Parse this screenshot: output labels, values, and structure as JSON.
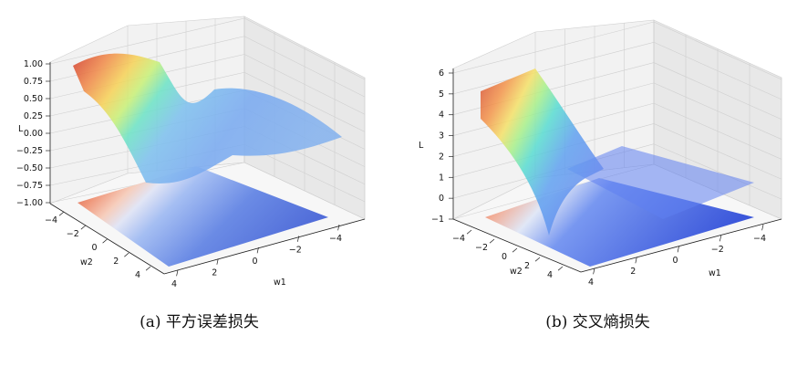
{
  "chart_data": [
    {
      "type": "surface3d",
      "caption": "(a) 平方误差损失",
      "zlabel": "L",
      "xlabel": "w1",
      "ylabel": "w2",
      "zlim": [
        -1.0,
        1.0
      ],
      "xlim": [
        -5,
        5
      ],
      "ylim": [
        -5,
        5
      ],
      "z_ticks": [
        "1.00",
        "0.75",
        "0.50",
        "0.25",
        "0.00",
        "−0.25",
        "−0.50",
        "−0.75",
        "−1.00"
      ],
      "x_ticks": [
        "4",
        "2",
        "0",
        "−2",
        "−4"
      ],
      "y_ticks": [
        "−4",
        "−2",
        "0",
        "2",
        "4"
      ],
      "grid": true,
      "colormap": "jet (surface), coolwarm (floor contour)"
    },
    {
      "type": "surface3d",
      "caption": "(b) 交叉熵损失",
      "zlabel": "L",
      "xlabel": "w1",
      "ylabel": "w2",
      "zlim": [
        -1,
        6
      ],
      "xlim": [
        -5,
        5
      ],
      "ylim": [
        -5,
        5
      ],
      "z_ticks": [
        "6",
        "5",
        "4",
        "3",
        "2",
        "1",
        "0",
        "−1"
      ],
      "x_ticks": [
        "4",
        "2",
        "0",
        "−2",
        "−4"
      ],
      "y_ticks": [
        "−4",
        "−2",
        "0",
        "2",
        "4"
      ],
      "grid": true,
      "colormap": "jet (surface), coolwarm (floor contour)"
    }
  ]
}
